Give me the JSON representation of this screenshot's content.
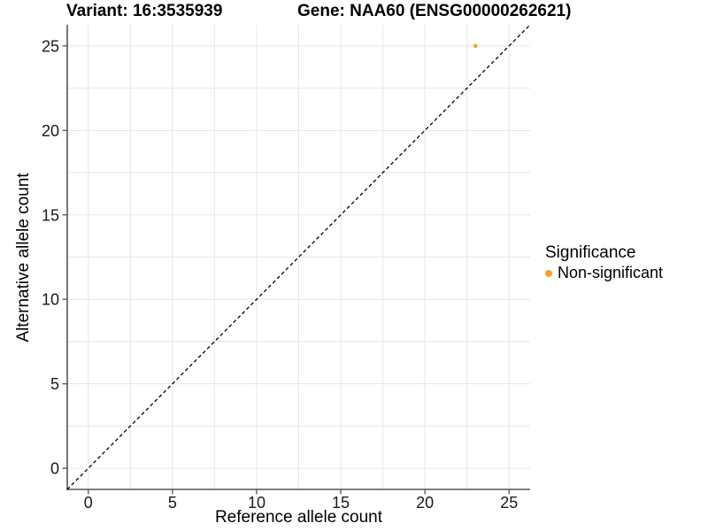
{
  "chart_data": {
    "type": "scatter",
    "title_left": "Variant: 16:3535939",
    "title_right": "Gene: NAA60 (ENSG00000262621)",
    "xlabel": "Reference allele count",
    "ylabel": "Alternative allele count",
    "xlim": [
      -1.25,
      26.25
    ],
    "ylim": [
      -1.25,
      26.25
    ],
    "xticks": [
      0,
      5,
      10,
      15,
      20,
      25
    ],
    "yticks": [
      0,
      5,
      10,
      15,
      20,
      25
    ],
    "minor_xticks": [
      2.5,
      7.5,
      12.5,
      17.5,
      22.5
    ],
    "minor_yticks": [
      2.5,
      7.5,
      12.5,
      17.5,
      22.5
    ],
    "grid": "major-and-minor",
    "identity_line": {
      "slope": 1,
      "intercept": 0,
      "style": "dashed",
      "color": "#000000"
    },
    "series": [
      {
        "name": "Non-significant",
        "color": "#FBA01F",
        "points": [
          {
            "x": 23,
            "y": 25
          }
        ]
      }
    ],
    "legend": {
      "title": "Significance",
      "position": "right",
      "items": [
        {
          "label": "Non-significant",
          "color": "#FBA01F",
          "marker": "circle"
        }
      ]
    }
  },
  "colors": {
    "background": "#FFFFFF",
    "panel_background": "#FFFFFF",
    "grid": "#E6E6E6",
    "axis_line": "#555555",
    "tick_mark": "#555555",
    "tick_label": "#1A1A1A",
    "title_text": "#000000",
    "point": "#FBA01F"
  }
}
